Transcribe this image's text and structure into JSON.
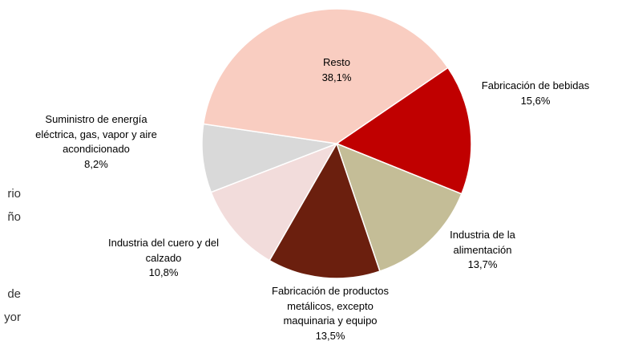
{
  "chart_data": {
    "type": "pie",
    "categories": [
      "Fabricación de bebidas",
      "Industria de la alimentación",
      "Fabricación de productos metálicos, excepto maquinaria y equipo",
      "Industria del cuero y del calzado",
      "Suministro de energía eléctrica, gas, vapor y aire acondicionado",
      "Resto"
    ],
    "values": [
      15.6,
      13.7,
      13.5,
      10.8,
      8.2,
      38.1
    ],
    "value_labels": [
      "15,6%",
      "13,7%",
      "13,5%",
      "10,8%",
      "8,2%",
      "38,1%"
    ],
    "colors": [
      "#c00000",
      "#c4bd97",
      "#6b1f0e",
      "#f2dcdb",
      "#d9d9d9",
      "#f9cdc1"
    ]
  },
  "left_fragments": [
    "rio",
    "ño",
    "de",
    "yor"
  ]
}
